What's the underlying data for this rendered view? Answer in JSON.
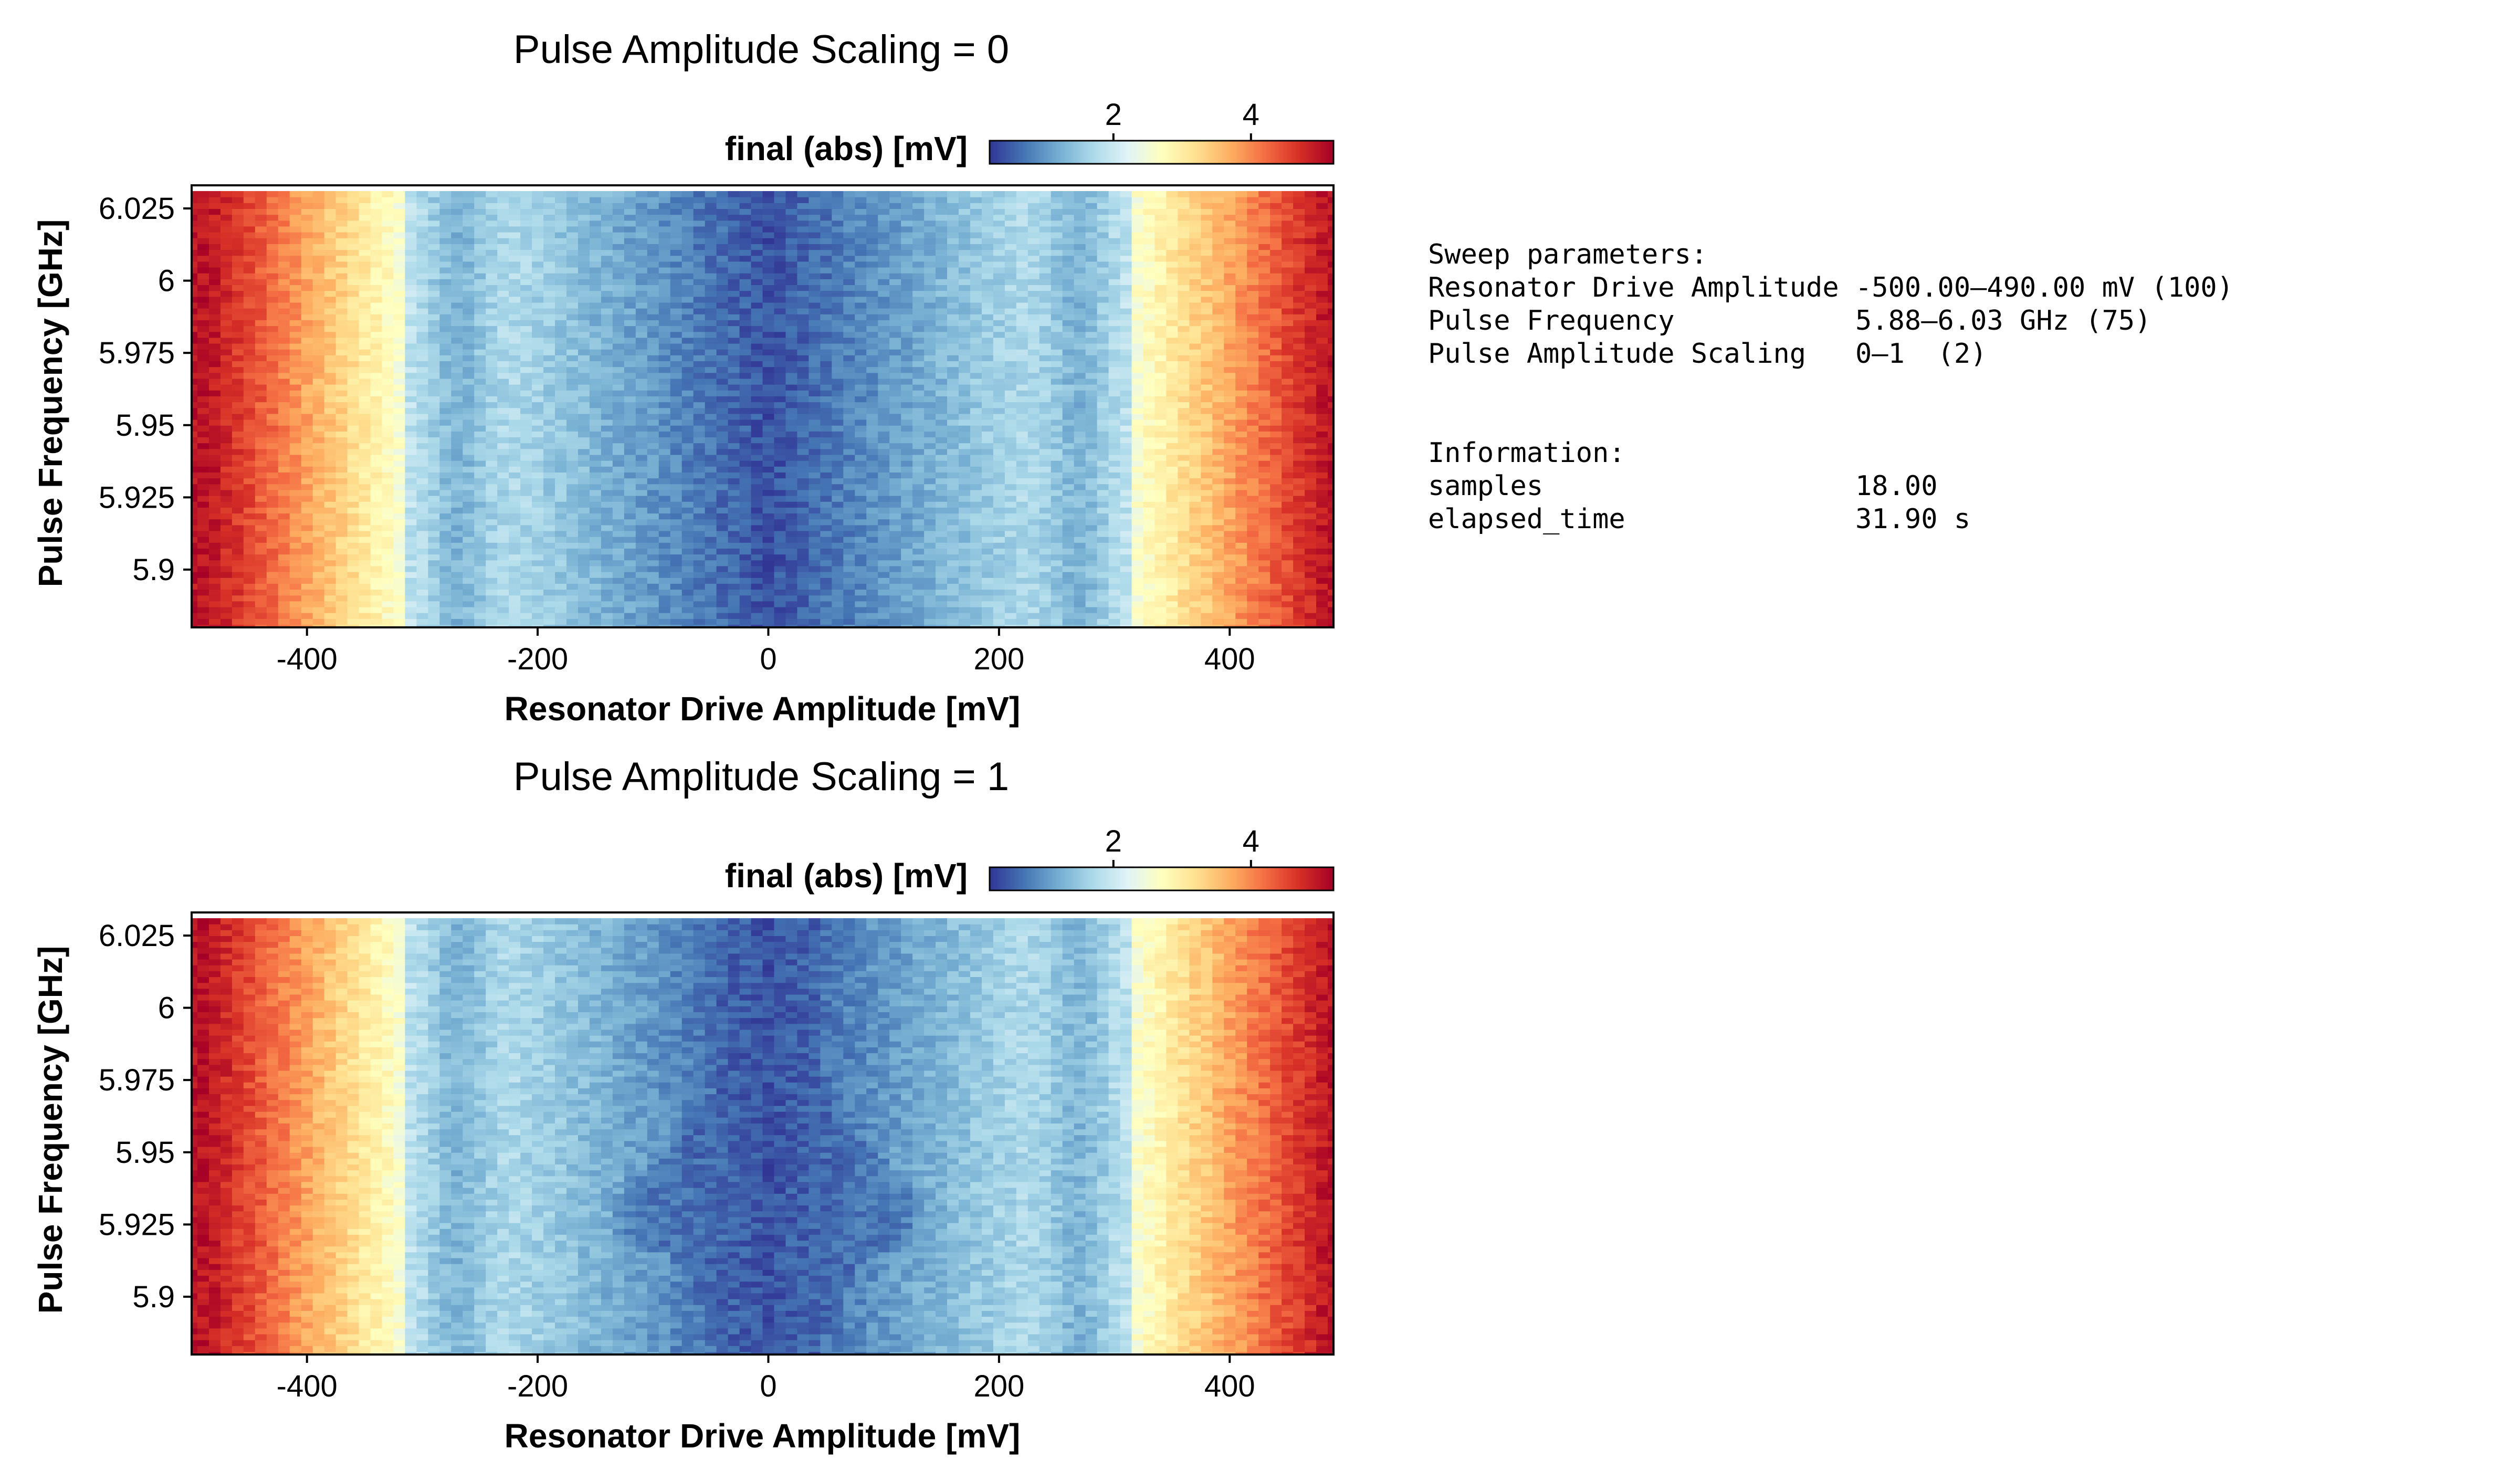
{
  "colors": {
    "colormap": [
      "#313695",
      "#4575b4",
      "#74add1",
      "#abd9e9",
      "#e0f3f8",
      "#ffffbf",
      "#fee090",
      "#fdae61",
      "#f46d43",
      "#d73027",
      "#a50026"
    ]
  },
  "chart_data": [
    {
      "type": "heatmap",
      "title": "Pulse Amplitude Scaling = 0",
      "xlabel": "Resonator Drive Amplitude [mV]",
      "ylabel": "Pulse Frequency [GHz]",
      "x_range": [
        -500,
        490
      ],
      "x_points": 100,
      "y_range": [
        5.88,
        6.03
      ],
      "y_points": 75,
      "xlim": [
        -500,
        490
      ],
      "ylim": [
        5.88,
        6.033
      ],
      "x_ticks": [
        -400,
        -200,
        0,
        200,
        400
      ],
      "x_tick_labels": [
        "-400",
        "-200",
        "0",
        "200",
        "400"
      ],
      "y_ticks": [
        5.9,
        5.925,
        5.95,
        5.975,
        6.0,
        6.025
      ],
      "y_tick_labels": [
        "5.9",
        "5.925",
        "5.95",
        "5.975",
        "6",
        "6.025"
      ],
      "grid": false,
      "colorbar": {
        "label": "final (abs) [mV]",
        "range": [
          0.2,
          5.2
        ],
        "ticks": [
          2,
          4
        ],
        "tick_labels": [
          "2",
          "4"
        ],
        "placement": "top-right"
      },
      "feature": "vertical low-amplitude band centered at 0 mV; high values at |amplitude| > 350 mV"
    },
    {
      "type": "heatmap",
      "title": "Pulse Amplitude Scaling = 1",
      "xlabel": "Resonator Drive Amplitude [mV]",
      "ylabel": "Pulse Frequency [GHz]",
      "x_range": [
        -500,
        490
      ],
      "x_points": 100,
      "y_range": [
        5.88,
        6.03
      ],
      "y_points": 75,
      "xlim": [
        -500,
        490
      ],
      "ylim": [
        5.88,
        6.033
      ],
      "x_ticks": [
        -400,
        -200,
        0,
        200,
        400
      ],
      "x_tick_labels": [
        "-400",
        "-200",
        "0",
        "200",
        "400"
      ],
      "y_ticks": [
        5.9,
        5.925,
        5.95,
        5.975,
        6.0,
        6.025
      ],
      "y_tick_labels": [
        "5.9",
        "5.925",
        "5.95",
        "5.975",
        "6",
        "6.025"
      ],
      "grid": false,
      "colorbar": {
        "label": "final (abs) [mV]",
        "range": [
          0.2,
          5.2
        ],
        "ticks": [
          2,
          4
        ],
        "tick_labels": [
          "2",
          "4"
        ],
        "placement": "top-right"
      },
      "feature": "vertical low-amplitude band centered at 0 mV that widens to about ±110 mV near 5.925 GHz (V-shaped resonance)"
    }
  ],
  "info_panel": {
    "lines": [
      "Sweep parameters:",
      "Resonator Drive Amplitude -500.00–490.00 mV (100)",
      "Pulse Frequency           5.88–6.03 GHz (75)",
      "Pulse Amplitude Scaling   0–1  (2)",
      "",
      "",
      "Information:",
      "samples                   18.00",
      "elapsed_time              31.90 s"
    ]
  }
}
